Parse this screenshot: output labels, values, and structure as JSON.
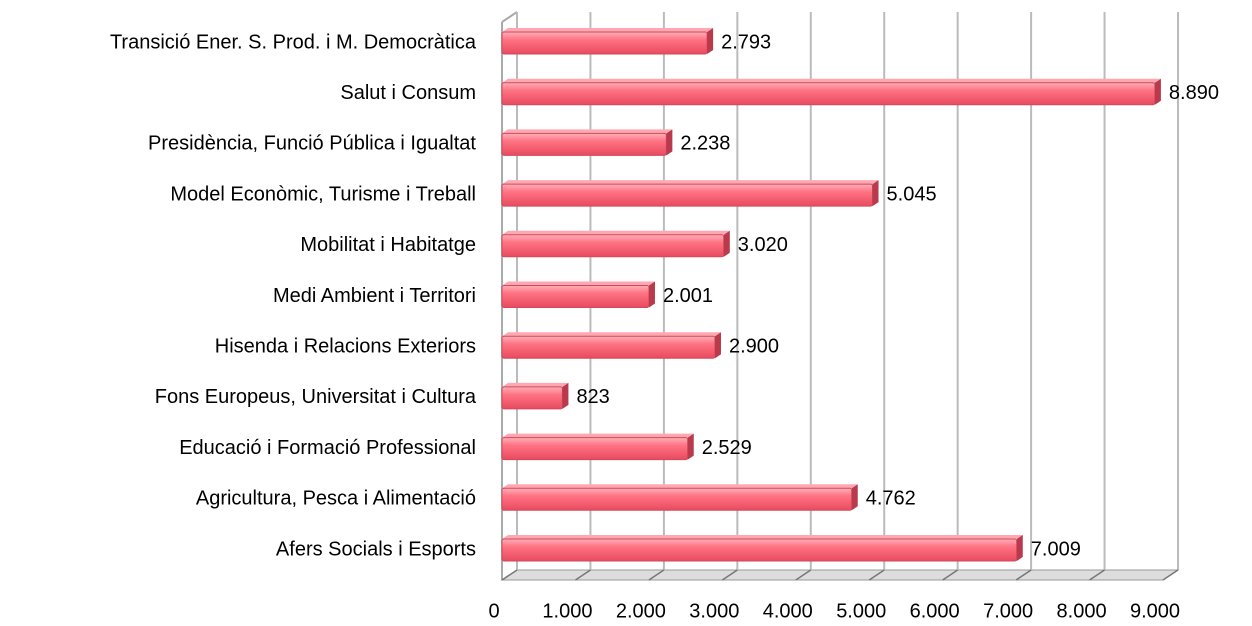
{
  "chart_data": {
    "type": "bar",
    "orientation": "horizontal",
    "categories": [
      "Transició Ener. S. Prod. i M. Democràtica",
      "Salut i Consum",
      "Presidència, Funció Pública  i Igualtat",
      "Model Econòmic, Turisme i Treball",
      "Mobilitat i Habitatge",
      "Medi Ambient i Territori",
      "Hisenda i Relacions Exteriors",
      "Fons Europeus, Universitat i Cultura",
      "Educació i Formació Professional",
      "Agricultura, Pesca i Alimentació",
      "Afers Socials i Esports"
    ],
    "values": [
      2793,
      8890,
      2238,
      5045,
      3020,
      2001,
      2900,
      823,
      2529,
      4762,
      7009
    ],
    "value_labels": [
      "2.793",
      "8.890",
      "2.238",
      "5.045",
      "3.020",
      "2.001",
      "2.900",
      "823",
      "2.529",
      "4.762",
      "7.009"
    ],
    "color": "#ff7080",
    "xlim": [
      0,
      9000
    ],
    "xticks": [
      0,
      {
        "value": 1000,
        "label": "1.000"
      },
      {
        "value": 2000,
        "label": "2.000"
      },
      {
        "value": 3000,
        "label": "3.000"
      },
      {
        "value": 4000,
        "label": "4.000"
      },
      {
        "value": 5000,
        "label": "5.000"
      },
      {
        "value": 6000,
        "label": "6.000"
      },
      {
        "value": 7000,
        "label": "7.000"
      },
      {
        "value": 8000,
        "label": "8.000"
      },
      {
        "value": 9000,
        "label": "9.000"
      }
    ],
    "grid": true
  }
}
